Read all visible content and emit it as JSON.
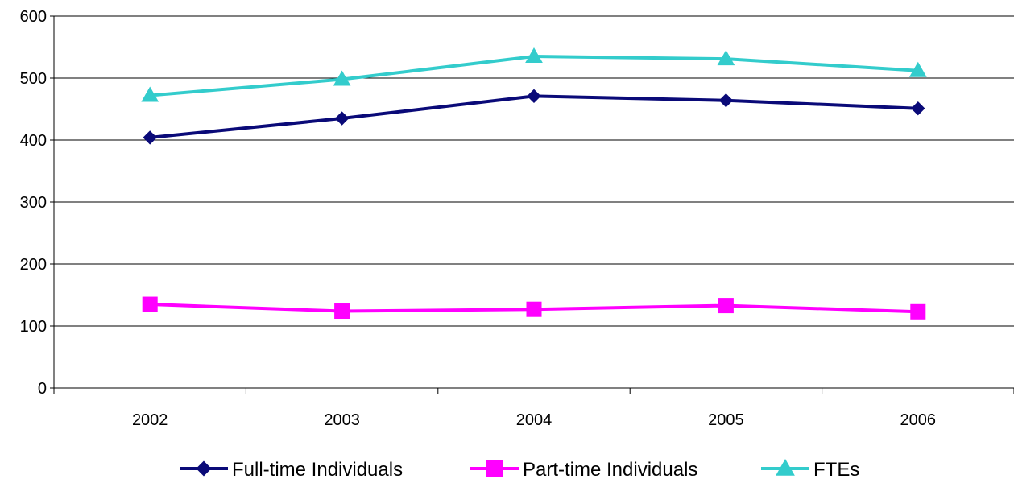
{
  "chart_data": {
    "type": "line",
    "categories": [
      "2002",
      "2003",
      "2004",
      "2005",
      "2006"
    ],
    "ylim": [
      0,
      600
    ],
    "yticks": [
      0,
      100,
      200,
      300,
      400,
      500,
      600
    ],
    "grid": true,
    "legend_position": "bottom",
    "series": [
      {
        "name": "Full-time Individuals",
        "values": [
          404,
          435,
          471,
          464,
          451
        ],
        "color": "#0a0a78",
        "marker": "diamond"
      },
      {
        "name": "Part-time Individuals",
        "values": [
          135,
          124,
          127,
          133,
          123
        ],
        "color": "#ff00ff",
        "marker": "square"
      },
      {
        "name": "FTEs",
        "values": [
          472,
          498,
          535,
          531,
          512
        ],
        "color": "#33cccc",
        "marker": "triangle"
      }
    ]
  }
}
